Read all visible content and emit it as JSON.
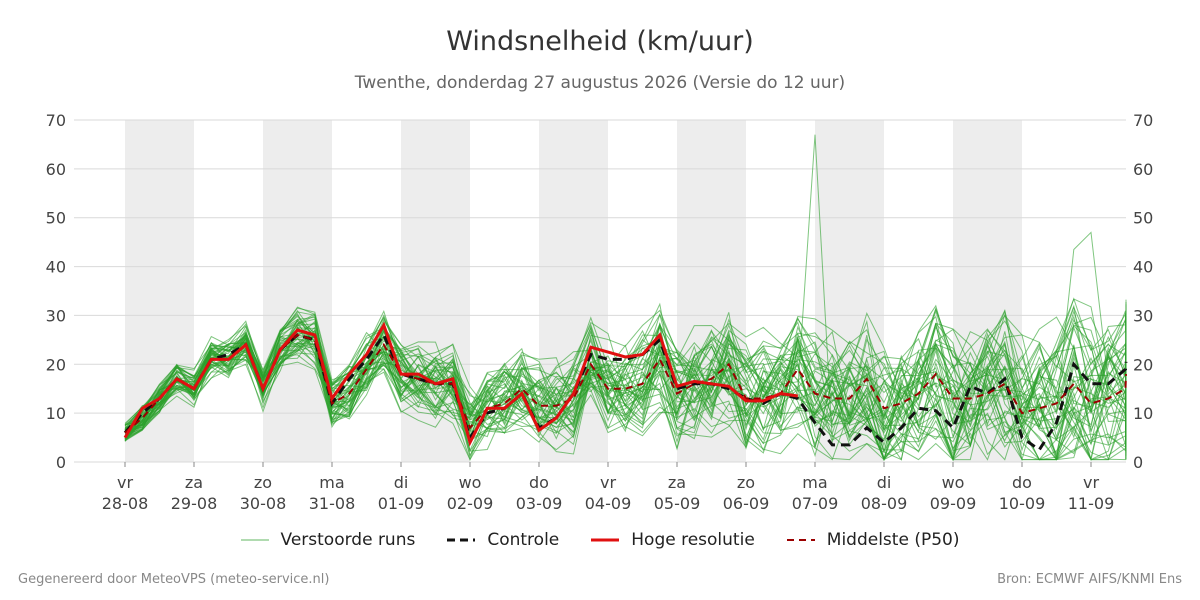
{
  "title": "Windsnelheid (km/uur)",
  "subtitle": "Twenthe, donderdag 27 augustus 2026 (Versie do 12 uur)",
  "footer_left": "Gegenereerd door MeteoVPS (meteo-service.nl)",
  "footer_right": "Bron: ECMWF AIFS/KNMI Ens",
  "colors": {
    "ensemble": "#2ca02c",
    "control": "#111111",
    "high_res": "#e01010",
    "median": "#9b0000",
    "band": "#ededed",
    "grid": "#d9d9d9"
  },
  "chart_data": {
    "type": "line",
    "ylim": [
      0,
      70
    ],
    "yticks": [
      0,
      10,
      20,
      30,
      40,
      50,
      60,
      70
    ],
    "grid": true,
    "legend_position": "bottom",
    "x_day_labels": [
      {
        "day": "vr",
        "date": "28-08"
      },
      {
        "day": "za",
        "date": "29-08"
      },
      {
        "day": "zo",
        "date": "30-08"
      },
      {
        "day": "ma",
        "date": "31-08"
      },
      {
        "day": "di",
        "date": "01-09"
      },
      {
        "day": "wo",
        "date": "02-09"
      },
      {
        "day": "do",
        "date": "03-09"
      },
      {
        "day": "vr",
        "date": "04-09"
      },
      {
        "day": "za",
        "date": "05-09"
      },
      {
        "day": "zo",
        "date": "06-09"
      },
      {
        "day": "ma",
        "date": "07-09"
      },
      {
        "day": "di",
        "date": "08-09"
      },
      {
        "day": "wo",
        "date": "09-09"
      },
      {
        "day": "do",
        "date": "10-09"
      },
      {
        "day": "vr",
        "date": "11-09"
      }
    ],
    "step_hours": 6,
    "first_point": "28-08 00:00",
    "series": [
      {
        "name": "Hoge resolutie",
        "values": [
          5,
          11,
          13,
          17,
          15,
          21,
          21,
          24,
          15,
          23,
          27,
          26,
          13,
          18,
          22,
          28,
          18,
          18,
          16,
          17,
          4,
          11,
          11,
          14,
          6.5,
          9,
          14,
          23.5,
          22.5,
          21.5,
          22,
          26,
          15.5,
          16.5,
          16,
          15.5,
          12.5,
          12.5,
          14,
          13.5
        ]
      },
      {
        "name": "Controle",
        "values": [
          6,
          10,
          13,
          17,
          15,
          21,
          22,
          24,
          15,
          23,
          26,
          25,
          12,
          17,
          21,
          26,
          18,
          17,
          16,
          16,
          5,
          10,
          11,
          14,
          7,
          9,
          14,
          22,
          21,
          21,
          22,
          25,
          15,
          16,
          16,
          15,
          13,
          12,
          14,
          13,
          8,
          3.5,
          3.5,
          7,
          4,
          7,
          11,
          10.5,
          7,
          15.5,
          14,
          17,
          5,
          2.5,
          8,
          20,
          16,
          16,
          19,
          20.5
        ]
      },
      {
        "name": "Middelste (P50)",
        "values": [
          6,
          9,
          13,
          17,
          15,
          21,
          21,
          24,
          15,
          23,
          26,
          25,
          12,
          14,
          19,
          24,
          18,
          17,
          16,
          16,
          7,
          11,
          12,
          15,
          11.5,
          11.5,
          13,
          20,
          15,
          15,
          16,
          21,
          14,
          16,
          17,
          20,
          13,
          13,
          14,
          19,
          14,
          13,
          13,
          17,
          11,
          12,
          14,
          18,
          13,
          13,
          14,
          16,
          10,
          11,
          12,
          16,
          12,
          13,
          15,
          18
        ]
      },
      {
        "name": "Verstoorde runs",
        "count": 50,
        "range": {
          "min": 0.5,
          "max": 67
        }
      }
    ]
  }
}
